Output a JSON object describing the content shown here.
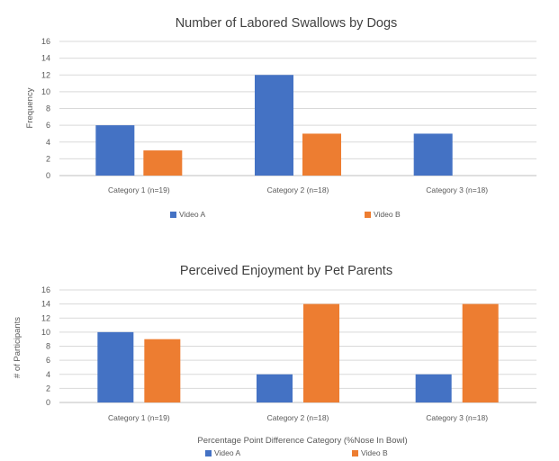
{
  "chart_data": [
    {
      "type": "bar",
      "title": "Number of Labored Swallows by Dogs",
      "ylabel": "Frequency",
      "xlabel": "",
      "categories": [
        "Category 1 (n=19)",
        "Category 2 (n=18)",
        "Category 3 (n=18)"
      ],
      "series": [
        {
          "name": "Video A",
          "values": [
            6,
            12,
            5
          ]
        },
        {
          "name": "Video B",
          "values": [
            3,
            5,
            0
          ]
        }
      ],
      "ylim": [
        0,
        16
      ],
      "yticks": [
        0,
        2,
        4,
        6,
        8,
        10,
        12,
        14,
        16
      ],
      "grid": true,
      "legend": "bottom",
      "colors": {
        "Video A": "#4472c4",
        "Video B": "#ed7d31"
      }
    },
    {
      "type": "bar",
      "title": "Perceived Enjoyment by Pet Parents",
      "ylabel": "# of Participants",
      "xlabel": "Percentage Point Difference Category (%Nose In Bowl)",
      "categories": [
        "Category 1 (n=19)",
        "Category 2 (n=18)",
        "Category 3 (n=18)"
      ],
      "series": [
        {
          "name": "Video A",
          "values": [
            10,
            4,
            4
          ]
        },
        {
          "name": "Video B",
          "values": [
            9,
            14,
            14
          ]
        }
      ],
      "ylim": [
        0,
        16
      ],
      "yticks": [
        0,
        2,
        4,
        6,
        8,
        10,
        12,
        14,
        16
      ],
      "grid": true,
      "legend": "bottom",
      "colors": {
        "Video A": "#4472c4",
        "Video B": "#ed7d31"
      }
    }
  ]
}
